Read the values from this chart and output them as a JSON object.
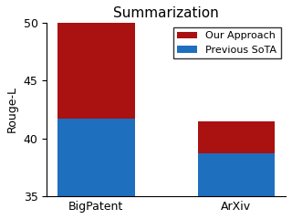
{
  "categories": [
    "BigPatent",
    "ArXiv"
  ],
  "previous_sota": [
    41.7,
    38.7
  ],
  "our_approach": [
    8.3,
    2.8
  ],
  "color_our_approach": "#aa1111",
  "color_previous_sota": "#1f6fbf",
  "title": "Summarization",
  "ylabel": "Rouge-L",
  "ylim": [
    35,
    50
  ],
  "yticks": [
    35,
    40,
    45,
    50
  ],
  "legend_our_approach": "Our Approach",
  "legend_previous_sota": "Previous SoTA",
  "background_color": "#ffffff"
}
